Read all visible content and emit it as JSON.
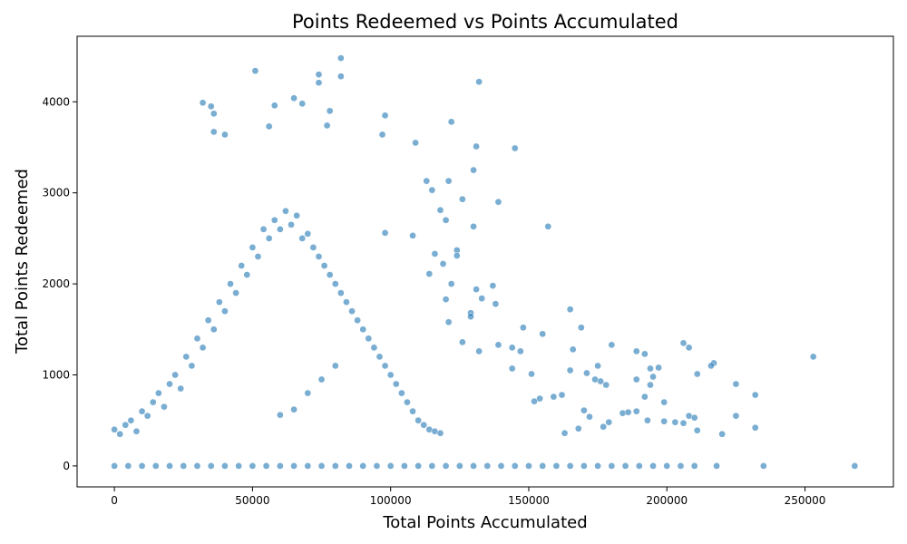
{
  "chart_data": {
    "type": "scatter",
    "title": "Points Redeemed vs Points Accumulated",
    "xlabel": "Total Points Accumulated",
    "ylabel": "Total Points Redeemed",
    "xlim": [
      -13500,
      282000
    ],
    "ylim": [
      -230,
      4720
    ],
    "xticks": [
      0,
      50000,
      100000,
      150000,
      200000,
      250000
    ],
    "yticks": [
      0,
      1000,
      2000,
      3000,
      4000
    ],
    "grid": false,
    "legend": "none",
    "marker_color": "#1f77b4",
    "marker_alpha": 0.6,
    "series": [
      {
        "points": [
          [
            51000,
            4340
          ],
          [
            82000,
            4480
          ],
          [
            74000,
            4300
          ],
          [
            82000,
            4280
          ],
          [
            132000,
            4220
          ],
          [
            74000,
            4210
          ],
          [
            65000,
            4040
          ],
          [
            32000,
            3990
          ],
          [
            58000,
            3960
          ],
          [
            68000,
            3980
          ],
          [
            35000,
            3950
          ],
          [
            78000,
            3900
          ],
          [
            36000,
            3870
          ],
          [
            98000,
            3850
          ],
          [
            122000,
            3780
          ],
          [
            56000,
            3730
          ],
          [
            77000,
            3740
          ],
          [
            36000,
            3670
          ],
          [
            40000,
            3640
          ],
          [
            97000,
            3640
          ],
          [
            109000,
            3550
          ],
          [
            131000,
            3510
          ],
          [
            145000,
            3490
          ],
          [
            130000,
            3250
          ],
          [
            113000,
            3130
          ],
          [
            121000,
            3130
          ],
          [
            115000,
            3030
          ],
          [
            126000,
            2930
          ],
          [
            139000,
            2900
          ],
          [
            118000,
            2810
          ],
          [
            120000,
            2700
          ],
          [
            130000,
            2630
          ],
          [
            157000,
            2630
          ],
          [
            98000,
            2560
          ],
          [
            108000,
            2530
          ],
          [
            124000,
            2370
          ],
          [
            124000,
            2310
          ],
          [
            116000,
            2330
          ],
          [
            119000,
            2220
          ],
          [
            114000,
            2110
          ],
          [
            122000,
            2000
          ],
          [
            137000,
            1980
          ],
          [
            131000,
            1940
          ],
          [
            133000,
            1840
          ],
          [
            120000,
            1830
          ],
          [
            138000,
            1780
          ],
          [
            129000,
            1680
          ],
          [
            129000,
            1640
          ],
          [
            165000,
            1720
          ],
          [
            121000,
            1580
          ],
          [
            148000,
            1520
          ],
          [
            169000,
            1520
          ],
          [
            155000,
            1450
          ],
          [
            126000,
            1360
          ],
          [
            144000,
            1300
          ],
          [
            132000,
            1260
          ],
          [
            139000,
            1330
          ],
          [
            147000,
            1260
          ],
          [
            166000,
            1280
          ],
          [
            180000,
            1330
          ],
          [
            206000,
            1350
          ],
          [
            208000,
            1300
          ],
          [
            217000,
            1130
          ],
          [
            216000,
            1100
          ],
          [
            253000,
            1200
          ],
          [
            189000,
            1260
          ],
          [
            192000,
            1230
          ],
          [
            197000,
            1080
          ],
          [
            194000,
            1070
          ],
          [
            175000,
            1100
          ],
          [
            171000,
            1020
          ],
          [
            165000,
            1050
          ],
          [
            151000,
            1010
          ],
          [
            144000,
            1070
          ],
          [
            211000,
            1010
          ],
          [
            195000,
            980
          ],
          [
            176000,
            930
          ],
          [
            178000,
            890
          ],
          [
            174000,
            950
          ],
          [
            189000,
            950
          ],
          [
            225000,
            900
          ],
          [
            232000,
            780
          ],
          [
            194000,
            890
          ],
          [
            192000,
            760
          ],
          [
            199000,
            700
          ],
          [
            184000,
            580
          ],
          [
            159000,
            760
          ],
          [
            162000,
            780
          ],
          [
            154000,
            740
          ],
          [
            152000,
            710
          ],
          [
            170000,
            610
          ],
          [
            172000,
            540
          ],
          [
            186000,
            590
          ],
          [
            189000,
            600
          ],
          [
            208000,
            550
          ],
          [
            210000,
            530
          ],
          [
            225000,
            550
          ],
          [
            193000,
            500
          ],
          [
            199000,
            490
          ],
          [
            203000,
            480
          ],
          [
            206000,
            470
          ],
          [
            232000,
            420
          ],
          [
            211000,
            390
          ],
          [
            220000,
            350
          ],
          [
            179000,
            480
          ],
          [
            177000,
            430
          ],
          [
            168000,
            410
          ],
          [
            163000,
            360
          ],
          [
            60000,
            560
          ],
          [
            65000,
            620
          ],
          [
            70000,
            800
          ],
          [
            75000,
            950
          ],
          [
            80000,
            1100
          ],
          [
            0,
            0
          ],
          [
            5000,
            0
          ],
          [
            10000,
            0
          ],
          [
            15000,
            0
          ],
          [
            20000,
            0
          ],
          [
            25000,
            0
          ],
          [
            30000,
            0
          ],
          [
            35000,
            0
          ],
          [
            40000,
            0
          ],
          [
            45000,
            0
          ],
          [
            50000,
            0
          ],
          [
            55000,
            0
          ],
          [
            60000,
            0
          ],
          [
            65000,
            0
          ],
          [
            70000,
            0
          ],
          [
            75000,
            0
          ],
          [
            80000,
            0
          ],
          [
            85000,
            0
          ],
          [
            90000,
            0
          ],
          [
            95000,
            0
          ],
          [
            100000,
            0
          ],
          [
            105000,
            0
          ],
          [
            110000,
            0
          ],
          [
            115000,
            0
          ],
          [
            120000,
            0
          ],
          [
            125000,
            0
          ],
          [
            130000,
            0
          ],
          [
            135000,
            0
          ],
          [
            140000,
            0
          ],
          [
            145000,
            0
          ],
          [
            150000,
            0
          ],
          [
            155000,
            0
          ],
          [
            160000,
            0
          ],
          [
            165000,
            0
          ],
          [
            170000,
            0
          ],
          [
            175000,
            0
          ],
          [
            180000,
            0
          ],
          [
            185000,
            0
          ],
          [
            190000,
            0
          ],
          [
            195000,
            0
          ],
          [
            200000,
            0
          ],
          [
            205000,
            0
          ],
          [
            210000,
            0
          ],
          [
            218000,
            0
          ],
          [
            235000,
            0
          ],
          [
            268000,
            0
          ]
        ],
        "cluster_points": [
          [
            0,
            400
          ],
          [
            2000,
            350
          ],
          [
            4000,
            450
          ],
          [
            6000,
            500
          ],
          [
            8000,
            380
          ],
          [
            10000,
            600
          ],
          [
            12000,
            550
          ],
          [
            14000,
            700
          ],
          [
            16000,
            800
          ],
          [
            18000,
            650
          ],
          [
            20000,
            900
          ],
          [
            22000,
            1000
          ],
          [
            24000,
            850
          ],
          [
            26000,
            1200
          ],
          [
            28000,
            1100
          ],
          [
            30000,
            1400
          ],
          [
            32000,
            1300
          ],
          [
            34000,
            1600
          ],
          [
            36000,
            1500
          ],
          [
            38000,
            1800
          ],
          [
            40000,
            1700
          ],
          [
            42000,
            2000
          ],
          [
            44000,
            1900
          ],
          [
            46000,
            2200
          ],
          [
            48000,
            2100
          ],
          [
            50000,
            2400
          ],
          [
            52000,
            2300
          ],
          [
            54000,
            2600
          ],
          [
            56000,
            2500
          ],
          [
            58000,
            2700
          ],
          [
            60000,
            2600
          ],
          [
            62000,
            2800
          ],
          [
            64000,
            2650
          ],
          [
            66000,
            2750
          ],
          [
            68000,
            2500
          ],
          [
            70000,
            2550
          ],
          [
            72000,
            2400
          ],
          [
            74000,
            2300
          ],
          [
            76000,
            2200
          ],
          [
            78000,
            2100
          ],
          [
            80000,
            2000
          ],
          [
            82000,
            1900
          ],
          [
            84000,
            1800
          ],
          [
            86000,
            1700
          ],
          [
            88000,
            1600
          ],
          [
            90000,
            1500
          ],
          [
            92000,
            1400
          ],
          [
            94000,
            1300
          ],
          [
            96000,
            1200
          ],
          [
            98000,
            1100
          ],
          [
            100000,
            1000
          ],
          [
            102000,
            900
          ],
          [
            104000,
            800
          ],
          [
            106000,
            700
          ],
          [
            108000,
            600
          ],
          [
            110000,
            500
          ],
          [
            112000,
            450
          ],
          [
            114000,
            400
          ],
          [
            116000,
            380
          ],
          [
            118000,
            360
          ]
        ]
      }
    ]
  }
}
